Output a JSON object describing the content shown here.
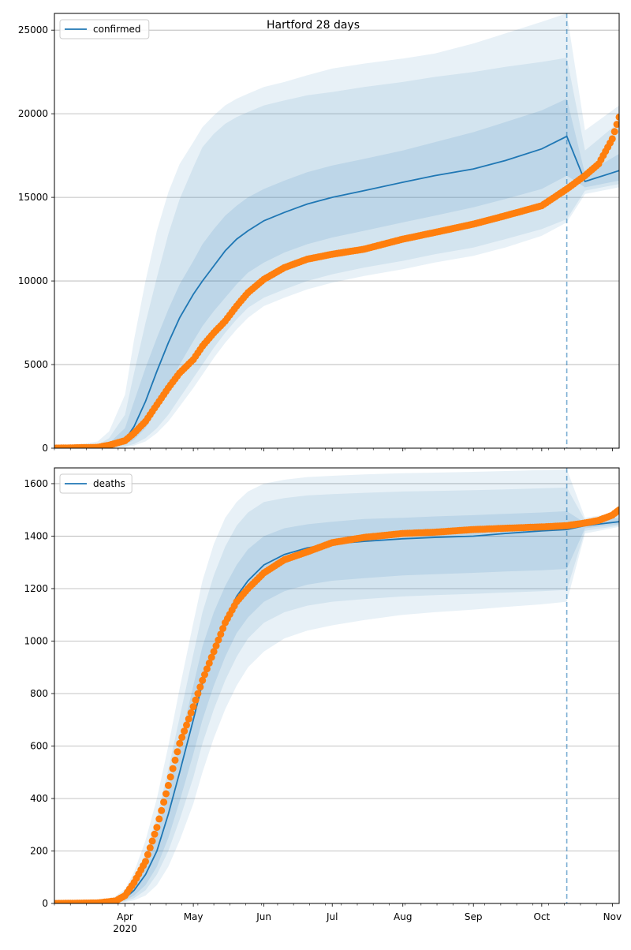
{
  "figure": {
    "title": "Hartford 28 days"
  },
  "colors": {
    "model": "#1f77b4",
    "observed": "#ff7f0e",
    "grid": "#b0b0b0",
    "band": "#1f77b4"
  },
  "chart_data": [
    {
      "type": "line",
      "name": "confirmed-panel",
      "legend": "confirmed",
      "legend_position": "top-left",
      "grid": "horizontal",
      "xlim": [
        "2020-03-01",
        "2020-11-04"
      ],
      "ylim": [
        0,
        26000
      ],
      "yticks": [
        0,
        5000,
        10000,
        15000,
        20000,
        25000
      ],
      "forecast_start": "2020-10-12",
      "model": {
        "x": [
          "2020-03-01",
          "2020-03-20",
          "2020-03-25",
          "2020-04-01",
          "2020-04-05",
          "2020-04-10",
          "2020-04-15",
          "2020-04-20",
          "2020-04-25",
          "2020-05-01",
          "2020-05-05",
          "2020-05-10",
          "2020-05-15",
          "2020-05-20",
          "2020-05-25",
          "2020-06-01",
          "2020-06-10",
          "2020-06-20",
          "2020-07-01",
          "2020-07-15",
          "2020-08-01",
          "2020-08-15",
          "2020-09-01",
          "2020-09-15",
          "2020-10-01",
          "2020-10-12",
          "2020-10-20",
          "2020-11-04"
        ],
        "y": [
          0,
          50,
          150,
          500,
          1300,
          2800,
          4600,
          6300,
          7800,
          9200,
          10000,
          10900,
          11800,
          12500,
          13000,
          13600,
          14100,
          14600,
          15000,
          15400,
          15900,
          16300,
          16700,
          17200,
          17900,
          18650,
          15950,
          16600
        ],
        "upper_1": [
          0,
          100,
          300,
          1200,
          2800,
          4800,
          6600,
          8300,
          9800,
          11200,
          12200,
          13100,
          13900,
          14500,
          15000,
          15500,
          16000,
          16500,
          16900,
          17300,
          17800,
          18300,
          18900,
          19500,
          20200,
          20900,
          16400,
          17600
        ],
        "lower_1": [
          0,
          20,
          80,
          200,
          500,
          1200,
          2300,
          3600,
          5000,
          6400,
          7300,
          8200,
          9000,
          9800,
          10500,
          11100,
          11700,
          12200,
          12600,
          13000,
          13500,
          13900,
          14400,
          14900,
          15500,
          16300,
          15600,
          16000
        ],
        "upper_2": [
          0,
          200,
          600,
          2000,
          4500,
          7500,
          10200,
          12800,
          14900,
          16800,
          18000,
          18800,
          19400,
          19800,
          20100,
          20500,
          20800,
          21100,
          21300,
          21600,
          21900,
          22200,
          22500,
          22800,
          23100,
          23350,
          17800,
          19500
        ],
        "lower_2": [
          0,
          10,
          40,
          100,
          250,
          600,
          1200,
          2000,
          3000,
          4200,
          5000,
          6000,
          6900,
          7700,
          8400,
          9000,
          9500,
          10000,
          10400,
          10800,
          11200,
          11600,
          12000,
          12500,
          13100,
          13700,
          15400,
          15800
        ],
        "upper_3": [
          0,
          400,
          1000,
          3200,
          6500,
          10000,
          13000,
          15300,
          17000,
          18300,
          19200,
          19900,
          20500,
          20900,
          21200,
          21600,
          21900,
          22300,
          22700,
          23000,
          23300,
          23600,
          24200,
          24800,
          25500,
          26000,
          19000,
          20500
        ],
        "lower_3": [
          0,
          5,
          20,
          50,
          150,
          400,
          900,
          1600,
          2500,
          3600,
          4400,
          5400,
          6300,
          7100,
          7800,
          8500,
          9000,
          9500,
          9900,
          10300,
          10700,
          11100,
          11500,
          12000,
          12700,
          13500,
          15200,
          15600
        ]
      },
      "observed": {
        "x": [
          "2020-03-01",
          "2020-03-20",
          "2020-03-25",
          "2020-04-01",
          "2020-04-05",
          "2020-04-10",
          "2020-04-15",
          "2020-04-20",
          "2020-04-25",
          "2020-05-01",
          "2020-05-05",
          "2020-05-10",
          "2020-05-15",
          "2020-05-20",
          "2020-05-25",
          "2020-06-01",
          "2020-06-10",
          "2020-06-20",
          "2020-07-01",
          "2020-07-15",
          "2020-08-01",
          "2020-08-15",
          "2020-09-01",
          "2020-09-15",
          "2020-10-01",
          "2020-10-12",
          "2020-10-20",
          "2020-10-26",
          "2020-11-01",
          "2020-11-04"
        ],
        "y": [
          0,
          50,
          180,
          450,
          900,
          1600,
          2600,
          3600,
          4500,
          5300,
          6100,
          6900,
          7600,
          8500,
          9300,
          10100,
          10800,
          11300,
          11600,
          11900,
          12500,
          12900,
          13400,
          13900,
          14500,
          15500,
          16300,
          17000,
          18500,
          19800
        ]
      }
    },
    {
      "type": "line",
      "name": "deaths-panel",
      "legend": "deaths",
      "legend_position": "top-left",
      "grid": "horizontal",
      "xlim": [
        "2020-03-01",
        "2020-11-04"
      ],
      "ylim": [
        0,
        1660
      ],
      "yticks": [
        0,
        200,
        400,
        600,
        800,
        1000,
        1200,
        1400,
        1600
      ],
      "xtick_labels": [
        "Apr\n2020",
        "May",
        "Jun",
        "Jul",
        "Aug",
        "Sep",
        "Oct",
        "Nov"
      ],
      "xtick_dates": [
        "2020-04-01",
        "2020-05-01",
        "2020-06-01",
        "2020-07-01",
        "2020-08-01",
        "2020-09-01",
        "2020-10-01",
        "2020-11-01"
      ],
      "forecast_start": "2020-10-12",
      "model": {
        "x": [
          "2020-03-01",
          "2020-03-25",
          "2020-04-01",
          "2020-04-05",
          "2020-04-10",
          "2020-04-15",
          "2020-04-20",
          "2020-04-25",
          "2020-05-01",
          "2020-05-05",
          "2020-05-10",
          "2020-05-15",
          "2020-05-20",
          "2020-05-25",
          "2020-06-01",
          "2020-06-10",
          "2020-06-20",
          "2020-07-01",
          "2020-07-15",
          "2020-08-01",
          "2020-08-15",
          "2020-09-01",
          "2020-09-15",
          "2020-10-01",
          "2020-10-12",
          "2020-10-20",
          "2020-11-04"
        ],
        "y": [
          0,
          2,
          20,
          50,
          110,
          200,
          340,
          500,
          700,
          840,
          970,
          1080,
          1170,
          1230,
          1290,
          1330,
          1355,
          1370,
          1380,
          1390,
          1395,
          1400,
          1410,
          1420,
          1425,
          1440,
          1455
        ],
        "upper_1": [
          0,
          4,
          30,
          70,
          150,
          270,
          430,
          610,
          830,
          980,
          1110,
          1210,
          1290,
          1350,
          1400,
          1430,
          1445,
          1455,
          1465,
          1470,
          1475,
          1480,
          1485,
          1490,
          1495,
          1450,
          1470
        ],
        "lower_1": [
          0,
          1,
          12,
          30,
          70,
          140,
          250,
          390,
          570,
          700,
          830,
          940,
          1030,
          1090,
          1150,
          1190,
          1215,
          1230,
          1240,
          1250,
          1255,
          1260,
          1265,
          1270,
          1275,
          1430,
          1445
        ],
        "upper_2": [
          0,
          6,
          40,
          90,
          190,
          330,
          510,
          710,
          950,
          1110,
          1250,
          1360,
          1440,
          1490,
          1530,
          1545,
          1555,
          1560,
          1565,
          1570,
          1572,
          1575,
          1578,
          1582,
          1585,
          1460,
          1480
        ],
        "lower_2": [
          0,
          1,
          8,
          20,
          50,
          110,
          200,
          320,
          480,
          610,
          740,
          850,
          940,
          1010,
          1070,
          1110,
          1135,
          1150,
          1160,
          1170,
          1175,
          1180,
          1185,
          1190,
          1195,
          1420,
          1440
        ],
        "upper_3": [
          0,
          10,
          55,
          120,
          240,
          400,
          600,
          820,
          1070,
          1230,
          1370,
          1470,
          1530,
          1570,
          1600,
          1615,
          1625,
          1630,
          1635,
          1640,
          1642,
          1645,
          1648,
          1652,
          1655,
          1470,
          1490
        ],
        "lower_3": [
          0,
          0,
          5,
          12,
          30,
          70,
          140,
          240,
          380,
          500,
          630,
          740,
          830,
          900,
          960,
          1010,
          1040,
          1060,
          1080,
          1100,
          1110,
          1120,
          1130,
          1140,
          1150,
          1410,
          1435
        ]
      },
      "observed": {
        "x": [
          "2020-03-01",
          "2020-03-20",
          "2020-03-28",
          "2020-04-01",
          "2020-04-05",
          "2020-04-10",
          "2020-04-15",
          "2020-04-20",
          "2020-04-25",
          "2020-05-01",
          "2020-05-05",
          "2020-05-10",
          "2020-05-15",
          "2020-05-20",
          "2020-05-25",
          "2020-06-01",
          "2020-06-10",
          "2020-06-20",
          "2020-07-01",
          "2020-07-15",
          "2020-08-01",
          "2020-08-15",
          "2020-09-01",
          "2020-09-15",
          "2020-10-01",
          "2020-10-12",
          "2020-10-20",
          "2020-10-26",
          "2020-11-01",
          "2020-11-04"
        ],
        "y": [
          0,
          2,
          10,
          30,
          80,
          160,
          290,
          450,
          610,
          750,
          850,
          960,
          1070,
          1150,
          1200,
          1260,
          1310,
          1340,
          1375,
          1395,
          1410,
          1415,
          1425,
          1430,
          1435,
          1440,
          1450,
          1460,
          1480,
          1500
        ]
      }
    }
  ]
}
